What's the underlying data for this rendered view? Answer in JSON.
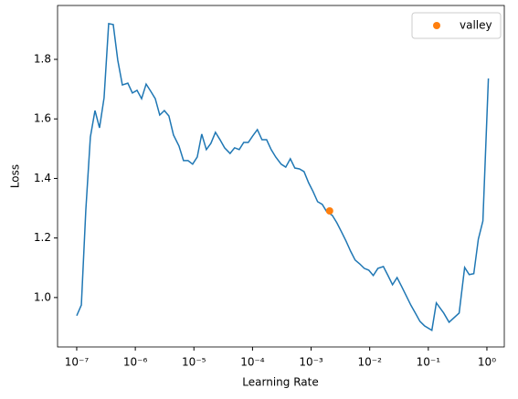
{
  "chart_data": {
    "type": "line",
    "xscale": "log",
    "xlabel": "Learning Rate",
    "ylabel": "Loss",
    "xlim": [
      4.71e-08,
      1.98
    ],
    "ylim": [
      0.834,
      1.981
    ],
    "xticks": [
      {
        "value": 1e-07,
        "label": "10⁻⁷"
      },
      {
        "value": 1e-06,
        "label": "10⁻⁶"
      },
      {
        "value": 1e-05,
        "label": "10⁻⁵"
      },
      {
        "value": 0.0001,
        "label": "10⁻⁴"
      },
      {
        "value": 0.001,
        "label": "10⁻³"
      },
      {
        "value": 0.01,
        "label": "10⁻²"
      },
      {
        "value": 0.1,
        "label": "10⁻¹"
      },
      {
        "value": 1,
        "label": "10⁰"
      }
    ],
    "yticks": [
      {
        "value": 1.0,
        "label": "1.0"
      },
      {
        "value": 1.2,
        "label": "1.2"
      },
      {
        "value": 1.4,
        "label": "1.4"
      },
      {
        "value": 1.6,
        "label": "1.6"
      },
      {
        "value": 1.8,
        "label": "1.8"
      }
    ],
    "legend": "upper right",
    "series": [
      {
        "color": "#1f77b4",
        "x": [
          1e-07,
          1.2e-07,
          1.43e-07,
          1.71e-07,
          2.05e-07,
          2.45e-07,
          2.93e-07,
          3.51e-07,
          4.2e-07,
          5.02e-07,
          6.01e-07,
          7.45e-07,
          8.91e-07,
          1.07e-06,
          1.28e-06,
          1.53e-06,
          1.83e-06,
          2.19e-06,
          2.61e-06,
          3.13e-06,
          3.74e-06,
          4.48e-06,
          5.56e-06,
          6.64e-06,
          7.94e-06,
          9.51e-06,
          1.14e-05,
          1.36e-05,
          1.63e-05,
          1.95e-05,
          2.33e-05,
          2.79e-05,
          3.34e-05,
          4.14e-05,
          4.95e-05,
          5.93e-05,
          7.08e-05,
          8.47e-05,
          0.000101,
          0.000121,
          0.000145,
          0.000174,
          0.000208,
          0.000249,
          0.000308,
          0.000369,
          0.000442,
          0.000528,
          0.000632,
          0.000757,
          0.000904,
          0.00108,
          0.00129,
          0.00155,
          0.00185,
          0.0023,
          0.00275,
          0.00329,
          0.00394,
          0.00471,
          0.00564,
          0.00675,
          0.00807,
          0.00964,
          0.0115,
          0.0138,
          0.0171,
          0.0205,
          0.0245,
          0.0293,
          0.0351,
          0.042,
          0.0502,
          0.0601,
          0.0719,
          0.0861,
          0.115,
          0.137,
          0.183,
          0.226,
          0.336,
          0.417,
          0.499,
          0.597,
          0.714,
          0.854,
          1.06
        ],
        "values": [
          0.939,
          0.975,
          1.294,
          1.539,
          1.628,
          1.57,
          1.671,
          1.92,
          1.917,
          1.797,
          1.714,
          1.72,
          1.687,
          1.696,
          1.668,
          1.717,
          1.693,
          1.668,
          1.613,
          1.628,
          1.61,
          1.546,
          1.509,
          1.46,
          1.46,
          1.448,
          1.472,
          1.549,
          1.497,
          1.518,
          1.555,
          1.53,
          1.503,
          1.484,
          1.503,
          1.497,
          1.521,
          1.521,
          1.543,
          1.564,
          1.53,
          1.53,
          1.497,
          1.472,
          1.448,
          1.438,
          1.466,
          1.435,
          1.432,
          1.423,
          1.386,
          1.356,
          1.322,
          1.313,
          1.288,
          1.276,
          1.251,
          1.221,
          1.19,
          1.156,
          1.126,
          1.113,
          1.098,
          1.092,
          1.074,
          1.098,
          1.104,
          1.074,
          1.043,
          1.067,
          1.037,
          1.006,
          0.975,
          0.948,
          0.92,
          0.905,
          0.89,
          0.982,
          0.948,
          0.917,
          0.948,
          1.101,
          1.077,
          1.08,
          1.196,
          1.257,
          1.736
        ]
      },
      {
        "name": "valley",
        "type": "scatter",
        "color": "#ff7f0e",
        "x": [
          0.00207
        ],
        "values": [
          1.291
        ]
      }
    ]
  }
}
